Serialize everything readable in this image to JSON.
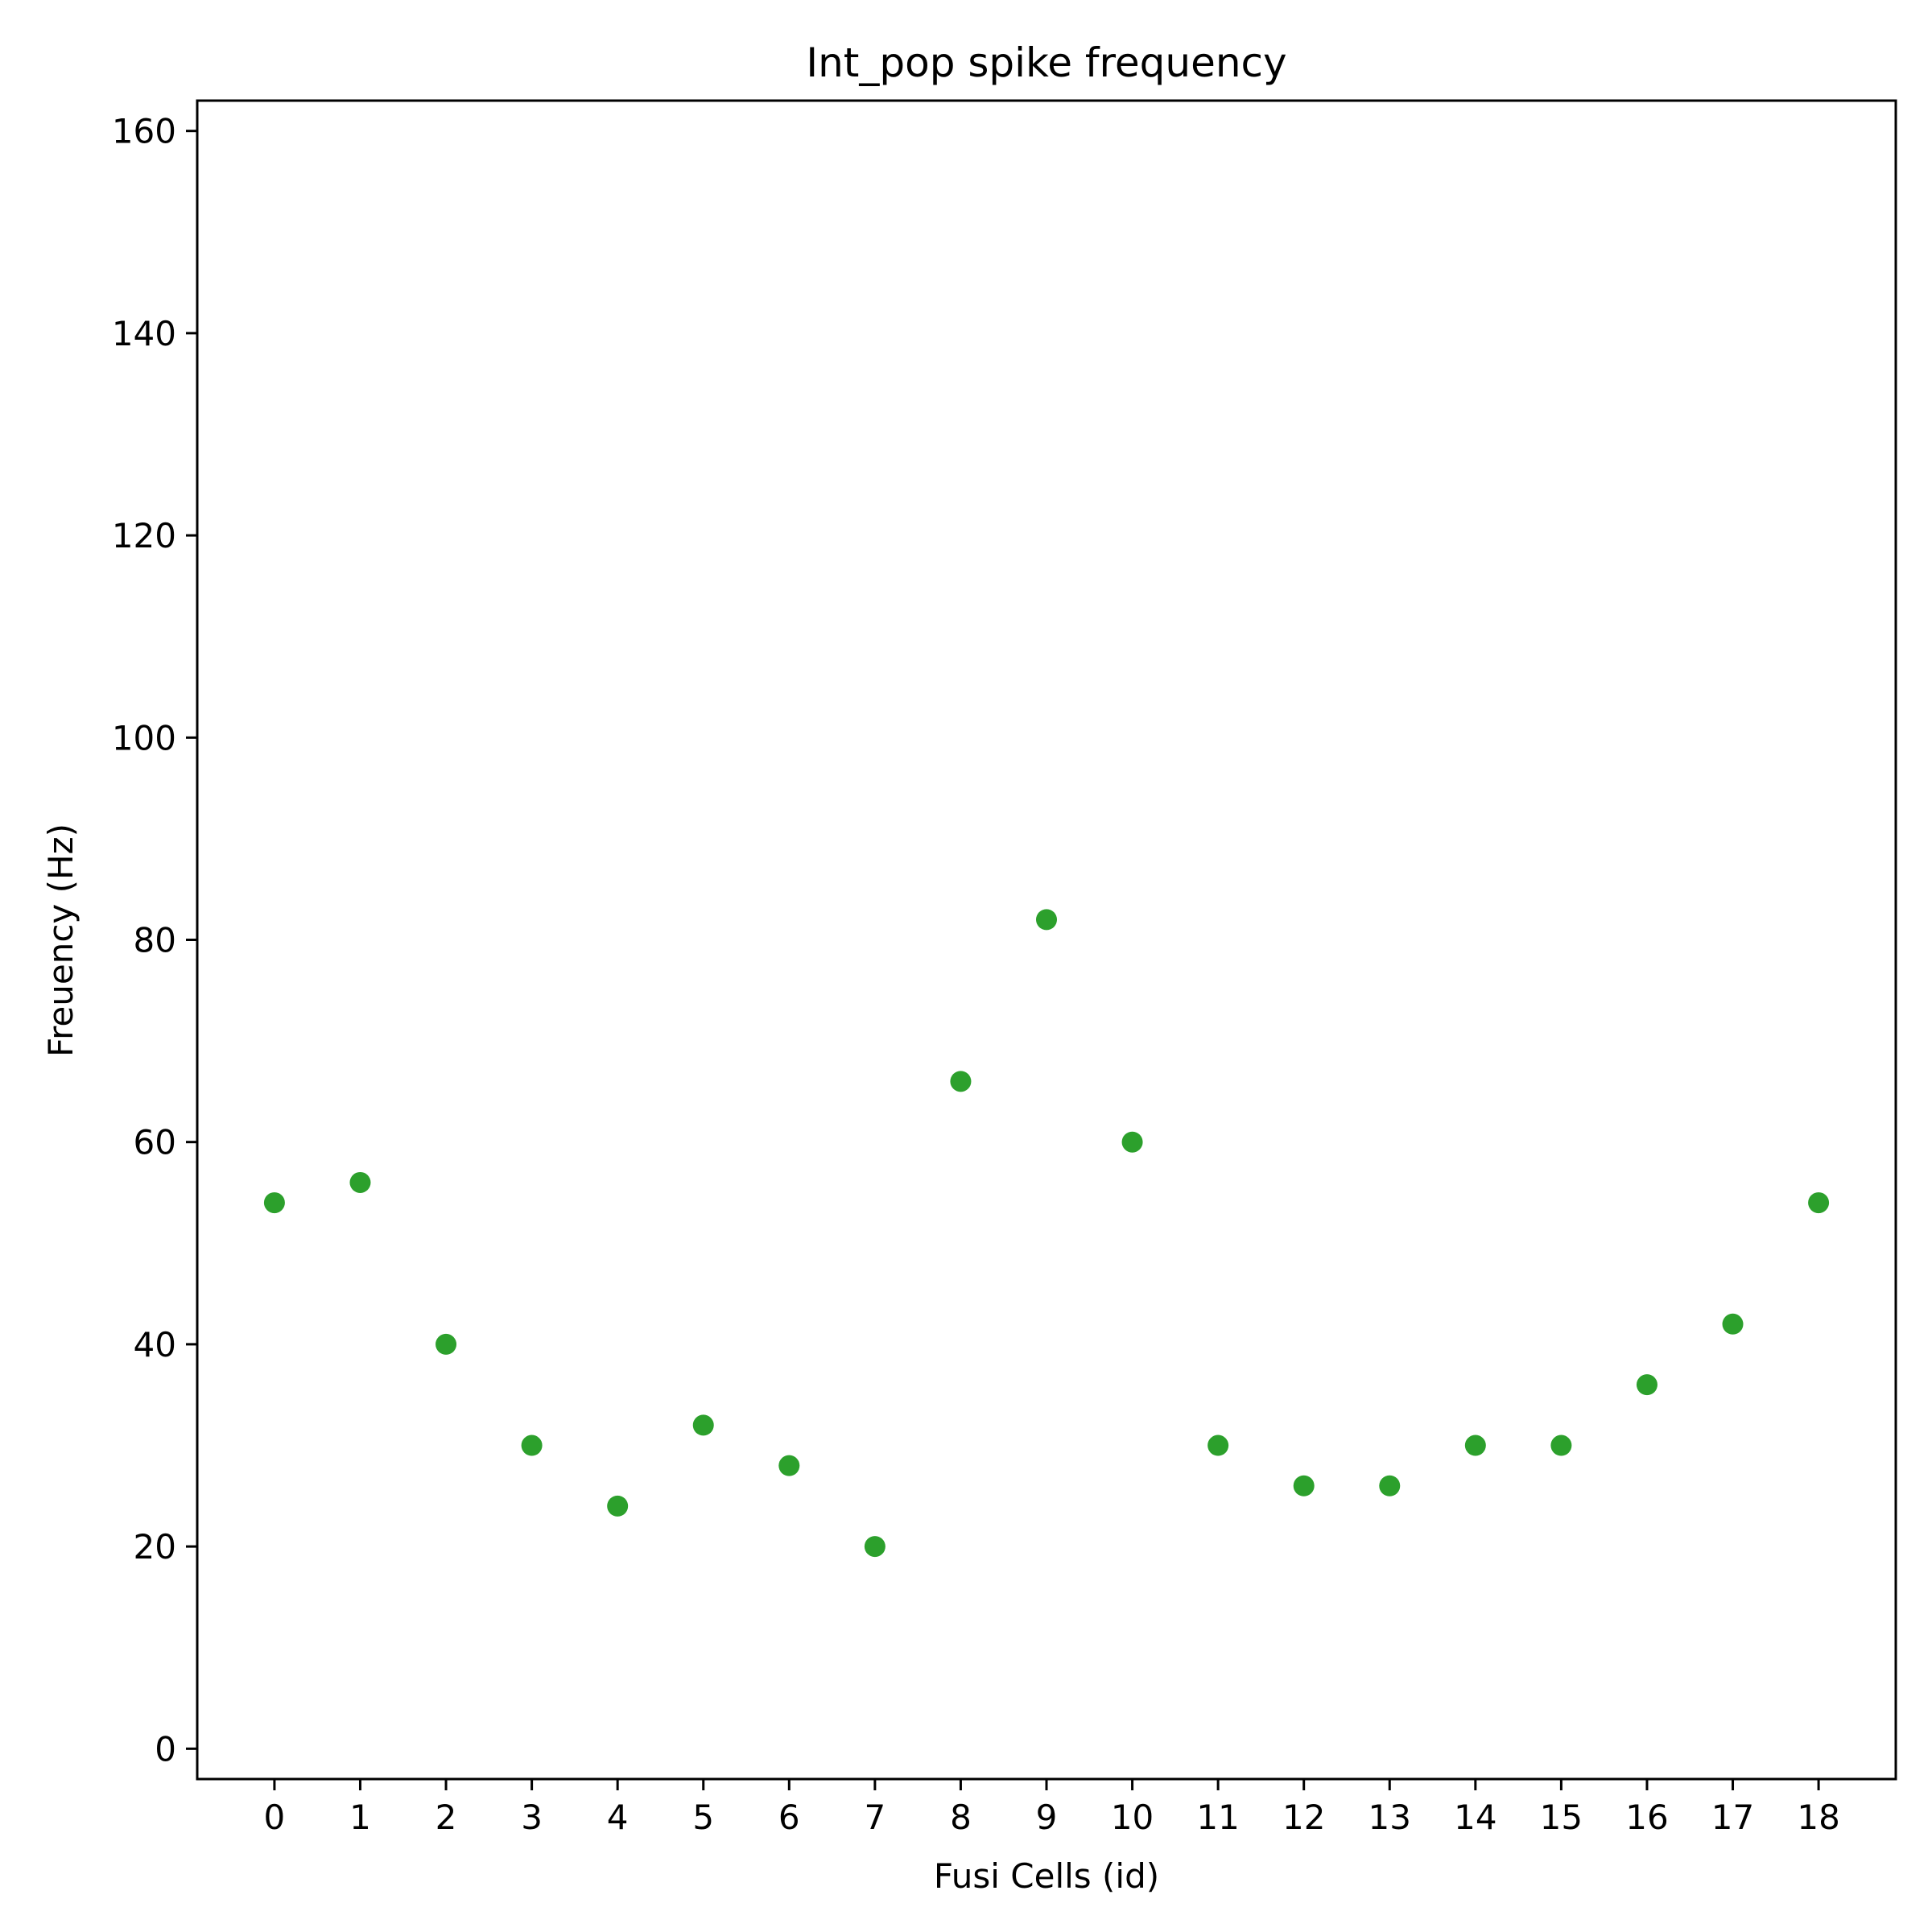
{
  "chart_data": {
    "type": "scatter",
    "title": "Int_pop spike frequency",
    "xlabel": "Fusi Cells (id)",
    "ylabel": "Freuency (Hz)",
    "x": [
      0,
      1,
      2,
      3,
      4,
      5,
      6,
      7,
      8,
      9,
      10,
      11,
      12,
      13,
      14,
      15,
      16,
      17,
      18
    ],
    "y": [
      54,
      56,
      40,
      30,
      24,
      32,
      28,
      20,
      66,
      82,
      60,
      30,
      26,
      26,
      30,
      30,
      36,
      42,
      54
    ],
    "xlim": [
      -0.9,
      18.9
    ],
    "ylim": [
      -3,
      163
    ],
    "xticks": [
      "0",
      "1",
      "2",
      "3",
      "4",
      "5",
      "6",
      "7",
      "8",
      "9",
      "10",
      "11",
      "12",
      "13",
      "14",
      "15",
      "16",
      "17",
      "18"
    ],
    "yticks": [
      "0",
      "20",
      "40",
      "60",
      "80",
      "100",
      "120",
      "140",
      "160"
    ],
    "marker_color": "#2ca02c",
    "grid": false,
    "legend": "none"
  }
}
